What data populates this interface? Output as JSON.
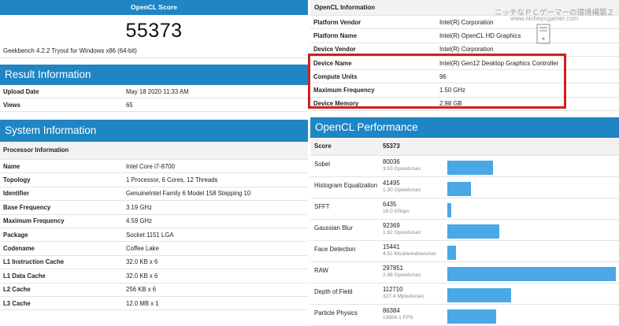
{
  "score_card": {
    "title": "OpenCL Score",
    "value": "55373",
    "subtitle": "Geekbench 4.2.2 Tryout for Windows x86 (64-bit)"
  },
  "result_info": {
    "title": "Result Information",
    "rows": [
      {
        "label": "Upload Date",
        "value": "May 18 2020 11:33 AM"
      },
      {
        "label": "Views",
        "value": "65"
      }
    ]
  },
  "system_info": {
    "title": "System Information",
    "subheader": "Processor Information",
    "rows": [
      {
        "label": "Name",
        "value": "Intel Core i7-8700"
      },
      {
        "label": "Topology",
        "value": "1 Processor, 6 Cores, 12 Threads"
      },
      {
        "label": "Identifier",
        "value": "GenuineIntel Family 6 Model 158 Stepping 10"
      },
      {
        "label": "Base Frequency",
        "value": "3.19 GHz"
      },
      {
        "label": "Maximum Frequency",
        "value": "4.59 GHz"
      },
      {
        "label": "Package",
        "value": "Socket 1151 LGA"
      },
      {
        "label": "Codename",
        "value": "Coffee Lake"
      },
      {
        "label": "L1 Instruction Cache",
        "value": "32.0 KB x 6"
      },
      {
        "label": "L1 Data Cache",
        "value": "32.0 KB x 6"
      },
      {
        "label": "L2 Cache",
        "value": "256 KB x 6"
      },
      {
        "label": "L3 Cache",
        "value": "12.0 MB x 1"
      }
    ]
  },
  "opencl_info": {
    "title": "OpenCL Information",
    "rows": [
      {
        "label": "Platform Vendor",
        "value": "Intel(R) Corporation"
      },
      {
        "label": "Platform Name",
        "value": "Intel(R) OpenCL HD Graphics"
      },
      {
        "label": "Device Vendor",
        "value": "Intel(R) Corporation"
      },
      {
        "label": "Device Name",
        "value": "Intel(R) Gen12 Desktop Graphics Controller"
      },
      {
        "label": "Compute Units",
        "value": "96"
      },
      {
        "label": "Maximum Frequency",
        "value": "1.50 GHz"
      },
      {
        "label": "Device Memory",
        "value": "2.98 GB"
      }
    ]
  },
  "opencl_performance": {
    "title": "OpenCL Performance",
    "score_label": "Score",
    "score_value": "55373",
    "max_score": 297851,
    "tests": [
      {
        "name": "Sobel",
        "score": 80036,
        "score_text": "80036",
        "rate": "3.53 Gpixels/sec"
      },
      {
        "name": "Histogram Equalization",
        "score": 41495,
        "score_text": "41495",
        "rate": "1.30 Gpixels/sec"
      },
      {
        "name": "SFFT",
        "score": 6435,
        "score_text": "6435",
        "rate": "16.0 Gflops"
      },
      {
        "name": "Gaussian Blur",
        "score": 92369,
        "score_text": "92369",
        "rate": "1.62 Gpixels/sec"
      },
      {
        "name": "Face Detection",
        "score": 15441,
        "score_text": "15441",
        "rate": "4.51 Msubwindows/sec"
      },
      {
        "name": "RAW",
        "score": 297851,
        "score_text": "297851",
        "rate": "2.88 Gpixels/sec"
      },
      {
        "name": "Depth of Field",
        "score": 112710,
        "score_text": "112710",
        "rate": "327.4 Mpixels/sec"
      },
      {
        "name": "Particle Physics",
        "score": 86384,
        "score_text": "86384",
        "rate": "13656.1 FPS"
      }
    ],
    "bar_color": "#4aa8e5"
  },
  "watermark": {
    "title": "ニッチなＰＣゲーマーの環境構築Ｚ",
    "url": "www.nichepcgamer.com",
    "icon": "pc-tower-icon"
  },
  "colors": {
    "header_blue": "#1f85c4",
    "highlight_red": "#d21f1f"
  }
}
